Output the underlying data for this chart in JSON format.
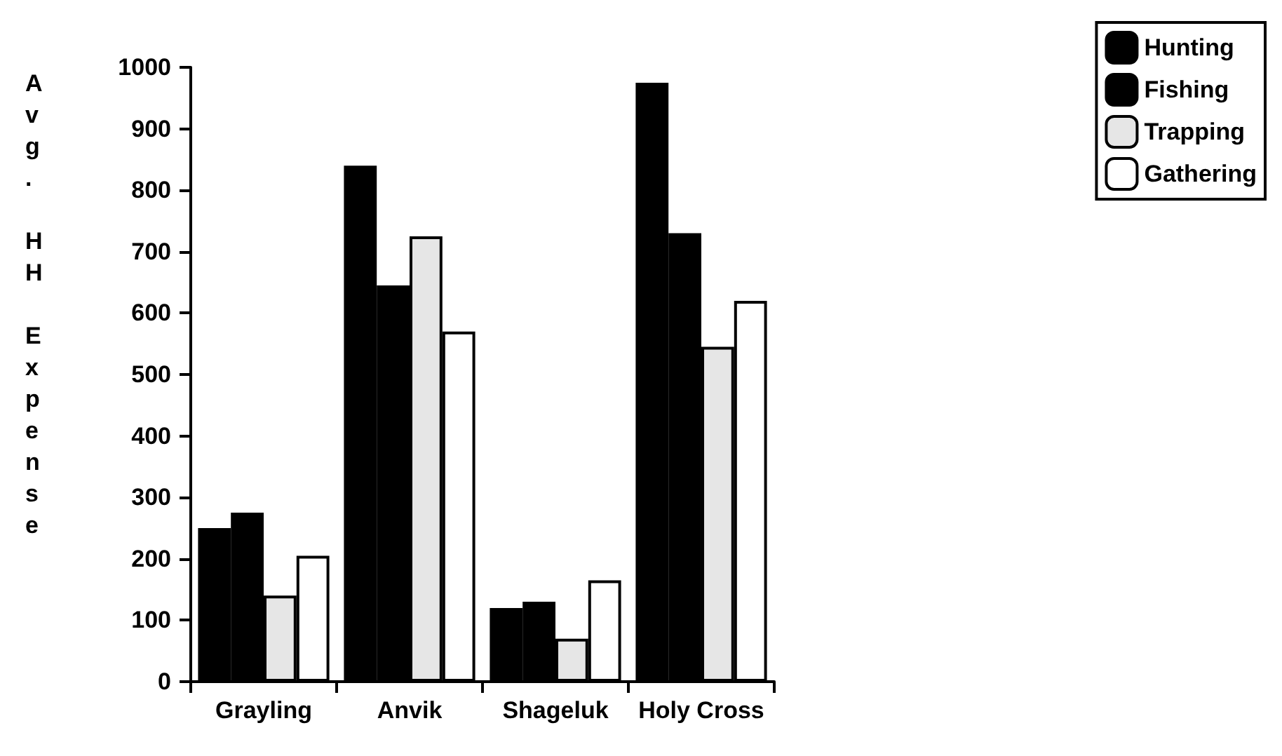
{
  "chart_data": {
    "type": "bar",
    "ylabel": "Avg. HH Expense",
    "categories": [
      "Grayling",
      "Anvik",
      "Shageluk",
      "Holy Cross"
    ],
    "series": [
      {
        "name": "Hunting",
        "color": "#000000",
        "values": [
          250,
          840,
          120,
          975
        ]
      },
      {
        "name": "Fishing",
        "color": "#000000",
        "values": [
          275,
          645,
          130,
          730
        ]
      },
      {
        "name": "Trapping",
        "color": "#e6e6e6",
        "values": [
          140,
          725,
          70,
          545
        ]
      },
      {
        "name": "Gathering",
        "color": "#ffffff",
        "values": [
          205,
          570,
          165,
          620
        ]
      }
    ],
    "ylim": [
      0,
      1000
    ],
    "yticks": [
      0,
      100,
      200,
      300,
      400,
      500,
      600,
      700,
      800,
      900,
      1000
    ],
    "grid": false,
    "legend": "top right"
  }
}
